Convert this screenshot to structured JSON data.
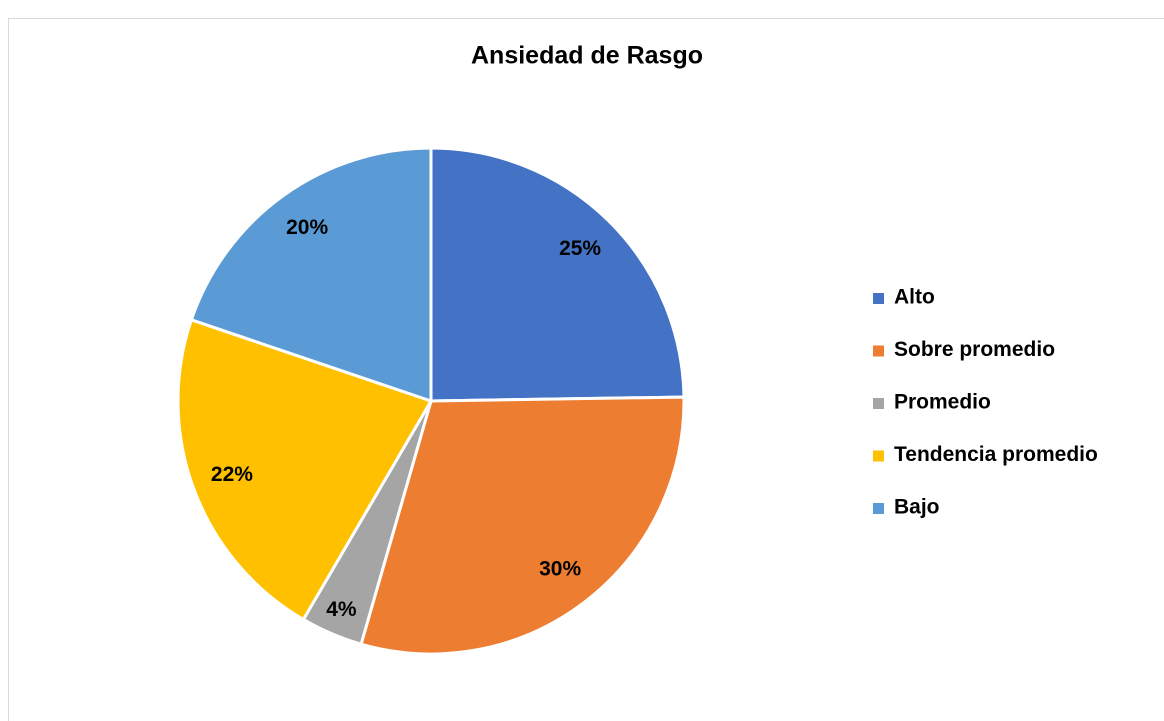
{
  "chart_data": {
    "type": "pie",
    "title": "Ansiedad de Rasgo",
    "categories": [
      "Alto",
      "Sobre promedio",
      "Promedio",
      "Tendencia promedio",
      "Bajo"
    ],
    "values": [
      25,
      30,
      4,
      22,
      20
    ],
    "value_labels": [
      "25%",
      "30%",
      "4%",
      "22%",
      "20%"
    ],
    "colors": [
      "#4472c4",
      "#ed7d31",
      "#a5a5a5",
      "#ffc000",
      "#5b9bd5"
    ],
    "legend": "right"
  }
}
